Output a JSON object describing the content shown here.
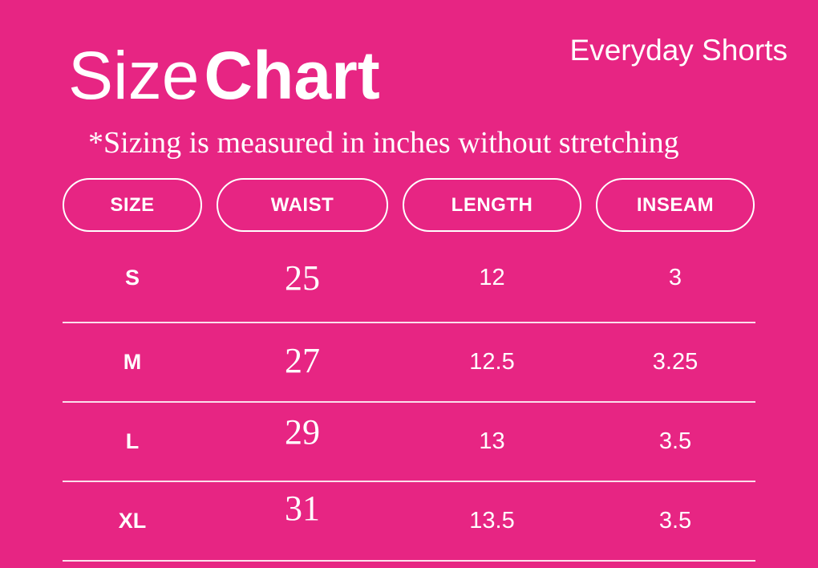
{
  "header": {
    "title_regular": "Size",
    "title_bold": "Chart",
    "product": "Everyday Shorts",
    "note": "*Sizing is measured in inches without stretching"
  },
  "chart_data": {
    "type": "table",
    "title": "Size Chart",
    "subtitle": "Everyday Shorts",
    "note": "*Sizing is measured in inches without stretching",
    "units": "inches",
    "columns": [
      "SIZE",
      "WAIST",
      "LENGTH",
      "INSEAM"
    ],
    "rows": [
      [
        "S",
        "25",
        "12",
        "3"
      ],
      [
        "M",
        "27",
        "12.5",
        "3.25"
      ],
      [
        "L",
        "29",
        "13",
        "3.5"
      ],
      [
        "XL",
        "31",
        "13.5",
        "3.5"
      ]
    ]
  },
  "colors": {
    "background": "#E72583",
    "text": "#FFFFFF",
    "divider": "rgba(255,255,255,0.85)"
  }
}
